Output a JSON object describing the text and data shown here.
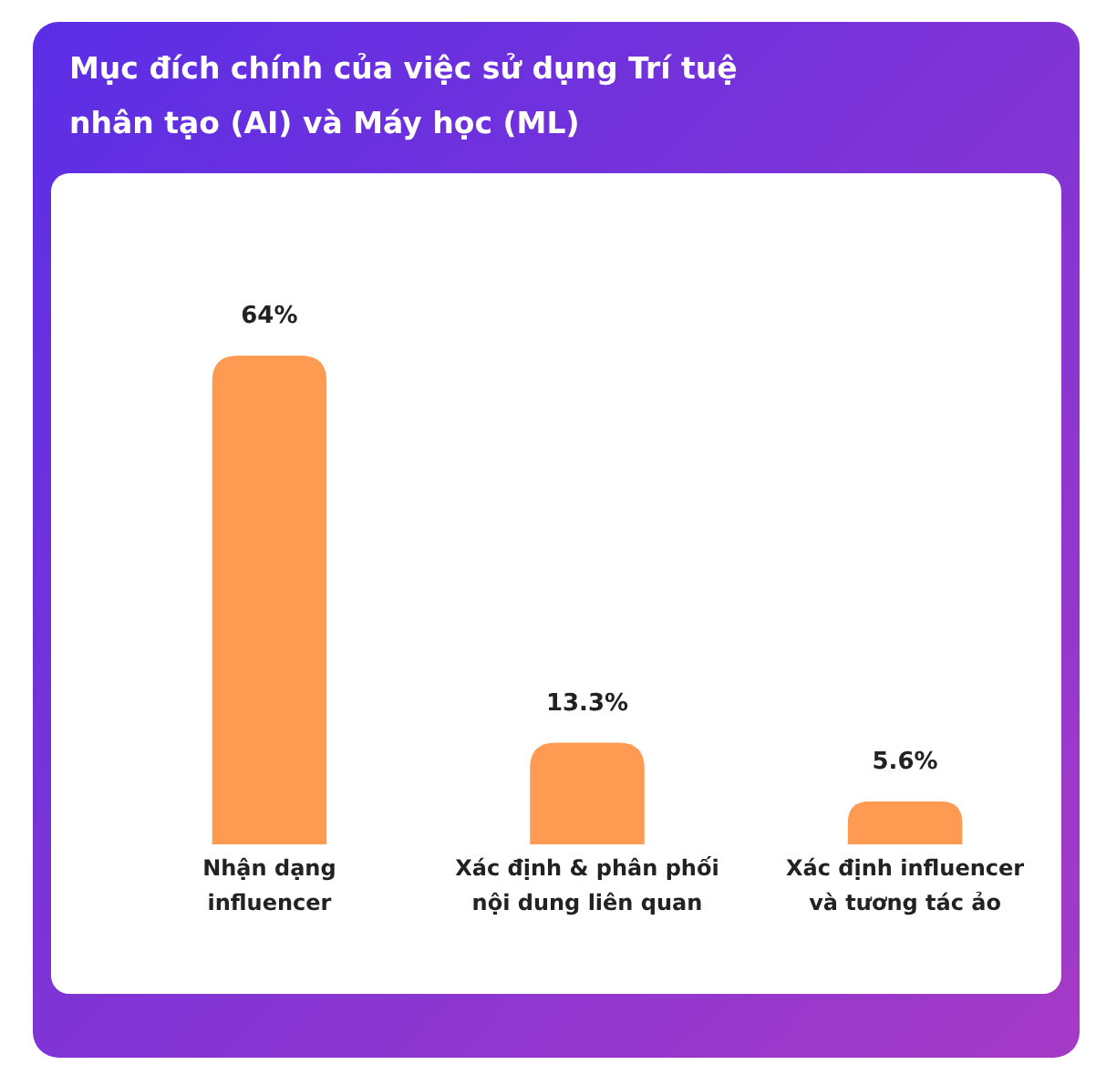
{
  "chart_data": {
    "type": "bar",
    "title": "Mục đích chính của việc sử dụng Trí tuệ nhân tạo (AI) và Máy học (ML)",
    "categories": [
      "Nhận dạng influencer",
      "Xác định & phân phối nội dung liên quan",
      "Xác định influencer và tương tác ảo"
    ],
    "values": [
      64,
      13.3,
      5.6
    ],
    "value_labels": [
      "64%",
      "13.3%",
      "5.6%"
    ],
    "color": "#ff9a52",
    "data_labels": true
  }
}
